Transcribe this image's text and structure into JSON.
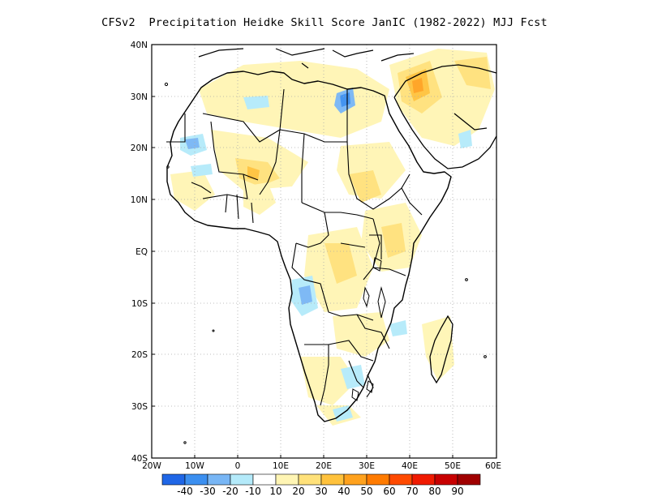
{
  "title": "CFSv2  Precipitation Heidke Skill Score JanIC (1982-2022) MJJ Fcst",
  "map": {
    "region": "Africa",
    "lon_range": [
      -20,
      60
    ],
    "lat_range": [
      -40,
      40
    ],
    "gridlines": "dotted",
    "xticks": [
      "20W",
      "10W",
      "0",
      "10E",
      "20E",
      "30E",
      "40E",
      "50E",
      "60E"
    ],
    "yticks": [
      "40N",
      "30N",
      "20N",
      "10N",
      "EQ",
      "10S",
      "20S",
      "30S",
      "40S"
    ]
  },
  "colorbar": {
    "colors": [
      "#1f66e6",
      "#3b8ff0",
      "#78b6f5",
      "#b4eafa",
      "#ffffff",
      "#fff5b4",
      "#ffe17a",
      "#ffc23c",
      "#ffa21e",
      "#ff7b00",
      "#ff4a00",
      "#f01a00",
      "#c80000",
      "#a00000"
    ],
    "labels": [
      "-40",
      "-30",
      "-20",
      "-10",
      "10",
      "20",
      "30",
      "40",
      "50",
      "60",
      "70",
      "80",
      "90"
    ]
  },
  "colors": {
    "coast": "#000000",
    "grid": "#aaaaaa"
  }
}
